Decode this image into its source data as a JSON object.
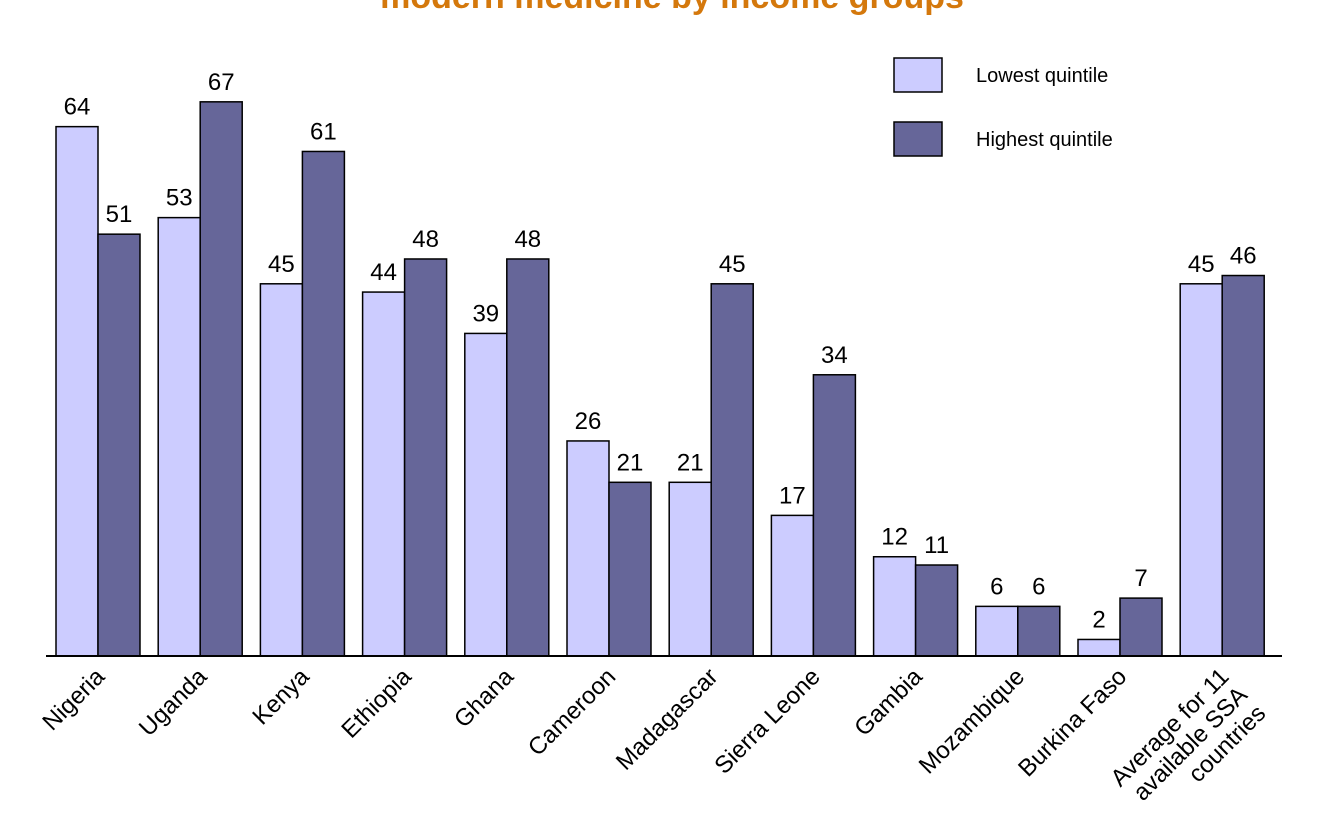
{
  "chart_data": {
    "type": "bar",
    "title": "modern medicine by income groups",
    "categories": [
      [
        "Nigeria"
      ],
      [
        "Uganda"
      ],
      [
        "Kenya"
      ],
      [
        "Ethiopia"
      ],
      [
        "Ghana"
      ],
      [
        "Cameroon"
      ],
      [
        "Madagascar"
      ],
      [
        "Sierra Leone"
      ],
      [
        "Gambia"
      ],
      [
        "Mozambique"
      ],
      [
        "Burkina Faso"
      ],
      [
        "Average for 11",
        "available SSA",
        "countries"
      ]
    ],
    "series": [
      {
        "name": "Lowest quintile",
        "color": "#ccccff",
        "values": [
          64,
          53,
          45,
          44,
          39,
          26,
          21,
          17,
          12,
          6,
          2,
          45
        ]
      },
      {
        "name": "Highest quintile",
        "color": "#666699",
        "values": [
          51,
          67,
          61,
          48,
          48,
          21,
          45,
          34,
          11,
          6,
          7,
          46
        ]
      }
    ],
    "ylim": [
      0,
      75
    ],
    "grid": false,
    "legend_position": "top-right"
  }
}
